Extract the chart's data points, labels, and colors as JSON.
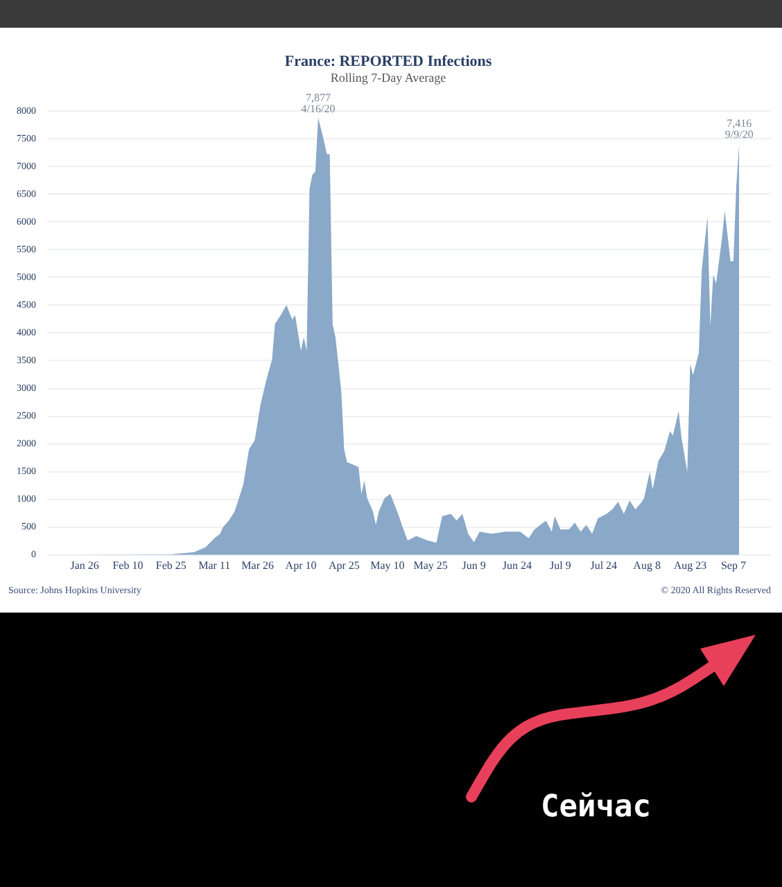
{
  "chart_data": {
    "type": "area",
    "title": "France: REPORTED Infections",
    "subtitle": "Rolling 7-Day Average",
    "x": [
      "2020-01-23",
      "2020-02-25",
      "2020-03-04",
      "2020-03-08",
      "2020-03-11",
      "2020-03-13",
      "2020-03-14",
      "2020-03-16",
      "2020-03-18",
      "2020-03-21",
      "2020-03-23",
      "2020-03-25",
      "2020-03-27",
      "2020-03-29",
      "2020-03-31",
      "2020-04-01",
      "2020-04-03",
      "2020-04-05",
      "2020-04-07",
      "2020-04-08",
      "2020-04-10",
      "2020-04-11",
      "2020-04-12",
      "2020-04-13",
      "2020-04-14",
      "2020-04-15",
      "2020-04-16",
      "2020-04-18",
      "2020-04-19",
      "2020-04-20",
      "2020-04-21",
      "2020-04-22",
      "2020-04-24",
      "2020-04-25",
      "2020-04-26",
      "2020-04-28",
      "2020-04-30",
      "2020-05-01",
      "2020-05-02",
      "2020-05-03",
      "2020-05-05",
      "2020-05-06",
      "2020-05-07",
      "2020-05-09",
      "2020-05-11",
      "2020-05-14",
      "2020-05-15",
      "2020-05-17",
      "2020-05-20",
      "2020-05-24",
      "2020-05-27",
      "2020-05-29",
      "2020-06-01",
      "2020-06-03",
      "2020-06-05",
      "2020-06-07",
      "2020-06-09",
      "2020-06-11",
      "2020-06-15",
      "2020-06-20",
      "2020-06-25",
      "2020-06-28",
      "2020-06-30",
      "2020-07-04",
      "2020-07-06",
      "2020-07-07",
      "2020-07-09",
      "2020-07-12",
      "2020-07-14",
      "2020-07-16",
      "2020-07-18",
      "2020-07-20",
      "2020-07-22",
      "2020-07-25",
      "2020-07-27",
      "2020-07-29",
      "2020-07-31",
      "2020-08-02",
      "2020-08-04",
      "2020-08-06",
      "2020-08-07",
      "2020-08-09",
      "2020-08-10",
      "2020-08-12",
      "2020-08-14",
      "2020-08-16",
      "2020-08-17",
      "2020-08-19",
      "2020-08-20",
      "2020-08-22",
      "2020-08-23",
      "2020-08-24",
      "2020-08-26",
      "2020-08-27",
      "2020-08-29",
      "2020-08-30",
      "2020-08-31",
      "2020-09-01",
      "2020-09-03",
      "2020-09-04",
      "2020-09-06",
      "2020-09-07",
      "2020-09-08",
      "2020-09-09"
    ],
    "values": [
      0,
      10,
      50,
      140,
      300,
      380,
      500,
      620,
      780,
      1260,
      1900,
      2070,
      2710,
      3150,
      3520,
      4160,
      4320,
      4500,
      4240,
      4320,
      3680,
      3920,
      3680,
      6600,
      6850,
      6900,
      7877,
      7460,
      7220,
      7220,
      4160,
      3920,
      2950,
      1900,
      1670,
      1630,
      1580,
      1100,
      1340,
      1020,
      780,
      540,
      780,
      1020,
      1100,
      700,
      540,
      260,
      340,
      260,
      220,
      700,
      740,
      620,
      740,
      380,
      230,
      420,
      380,
      420,
      420,
      300,
      460,
      620,
      420,
      700,
      460,
      460,
      580,
      420,
      540,
      380,
      660,
      740,
      820,
      960,
      740,
      980,
      820,
      940,
      1020,
      1500,
      1180,
      1700,
      1870,
      2230,
      2150,
      2590,
      2110,
      1500,
      3440,
      3240,
      3640,
      5130,
      6090,
      4120,
      5050,
      4890,
      5690,
      6200,
      5290,
      5290,
      6650,
      7416
    ],
    "color": "#8aa8c8",
    "xlim": [
      "2020-01-13",
      "2020-09-20"
    ],
    "xticks": [
      {
        "value": "2020-01-26",
        "label": "Jan 26"
      },
      {
        "value": "2020-02-10",
        "label": "Feb 10"
      },
      {
        "value": "2020-02-25",
        "label": "Feb 25"
      },
      {
        "value": "2020-03-11",
        "label": "Mar 11"
      },
      {
        "value": "2020-03-26",
        "label": "Mar 26"
      },
      {
        "value": "2020-04-10",
        "label": "Apr 10"
      },
      {
        "value": "2020-04-25",
        "label": "Apr 25"
      },
      {
        "value": "2020-05-10",
        "label": "May 10"
      },
      {
        "value": "2020-05-25",
        "label": "May 25"
      },
      {
        "value": "2020-06-09",
        "label": "Jun 9"
      },
      {
        "value": "2020-06-24",
        "label": "Jun 24"
      },
      {
        "value": "2020-07-09",
        "label": "Jul 9"
      },
      {
        "value": "2020-07-24",
        "label": "Jul 24"
      },
      {
        "value": "2020-08-08",
        "label": "Aug 8"
      },
      {
        "value": "2020-08-23",
        "label": "Aug 23"
      },
      {
        "value": "2020-09-07",
        "label": "Sep 7"
      }
    ],
    "ylim": [
      0,
      8000
    ],
    "yticks": [
      0,
      500,
      1000,
      1500,
      2000,
      2500,
      3000,
      3500,
      4000,
      4500,
      5000,
      5500,
      6000,
      6500,
      7000,
      7500,
      8000
    ],
    "grid": "y",
    "legend": false,
    "annotations": [
      {
        "text": "7,877\n4/16/20",
        "x": "2020-04-16",
        "y": 7877
      },
      {
        "text": "7,416\n9/9/20",
        "x": "2020-09-09",
        "y": 7416
      },
      "Source: Johns Hopkins University",
      "© 2020 All Rights Reserved",
      "Сейчас"
    ]
  }
}
